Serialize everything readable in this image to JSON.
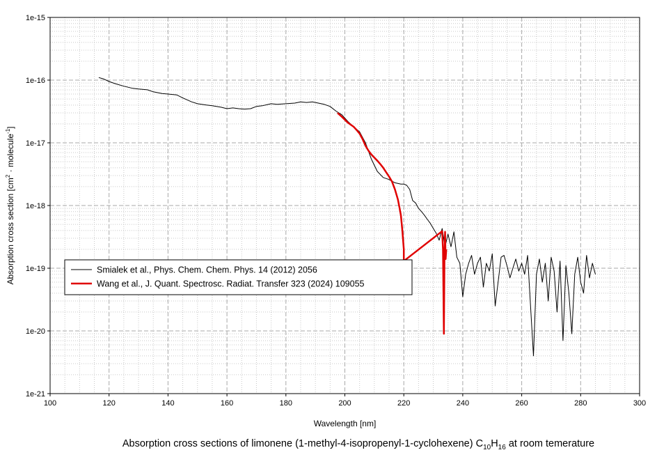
{
  "caption": {
    "prefix": "Absorption cross sections of limonene (1-methyl-4-isopropenyl-1-cyclohexene) C",
    "sub1": "10",
    "h": "H",
    "sub2": "16",
    "suffix": " at room temerature"
  },
  "chart_data": {
    "type": "line",
    "xlabel": "Wavelength [nm]",
    "ylabel_main": "Absorption cross section [cm",
    "ylabel_sup1": "2",
    "ylabel_mid": " · molecule",
    "ylabel_sup2": "-1",
    "ylabel_end": "]",
    "xlim": [
      100,
      300
    ],
    "ylim": [
      1e-21,
      1e-15
    ],
    "yscale": "log",
    "grid": true,
    "legend_position": "left-middle",
    "x_ticks": [
      100,
      120,
      140,
      160,
      180,
      200,
      220,
      240,
      260,
      280,
      300
    ],
    "x_tick_labels": [
      "100",
      "120",
      "140",
      "160",
      "180",
      "200",
      "220",
      "240",
      "260",
      "280",
      "300"
    ],
    "y_ticks": [
      1e-15,
      1e-16,
      1e-17,
      1e-18,
      1e-19,
      1e-20,
      1e-21
    ],
    "y_tick_labels": [
      "1e-15",
      "1e-16",
      "1e-17",
      "1e-18",
      "1e-19",
      "1e-20",
      "1e-21"
    ],
    "series": [
      {
        "name": "Smialek et al., Phys. Chem. Chem. Phys. 14 (2012) 2056",
        "color": "#000000",
        "x": [
          116.5,
          118,
          120,
          122,
          125,
          128,
          130,
          133,
          135,
          138,
          140,
          143,
          145,
          148,
          150,
          153,
          155,
          158,
          160,
          162,
          164,
          166,
          168,
          170,
          172,
          175,
          177,
          180,
          183,
          185,
          187,
          189,
          191,
          193,
          195,
          197,
          199,
          201,
          203,
          205,
          207,
          209,
          211,
          213,
          215,
          217,
          219,
          220,
          221,
          222,
          223,
          224,
          225,
          226,
          227,
          228,
          229,
          230,
          231,
          232,
          233,
          234,
          235,
          236,
          237,
          238,
          239,
          240,
          241,
          242,
          243,
          244,
          245,
          246,
          247,
          248,
          249,
          250,
          251,
          252,
          253,
          254,
          255,
          256,
          257,
          258,
          259,
          260,
          261,
          262,
          263,
          264,
          265,
          266,
          267,
          268,
          269,
          270,
          271,
          272,
          273,
          274,
          275,
          276,
          277,
          278,
          279,
          280,
          281,
          282,
          283,
          284,
          285
        ],
        "y": [
          1.1e-16,
          1.05e-16,
          9.5e-17,
          8.8e-17,
          8e-17,
          7.4e-17,
          7.2e-17,
          7e-17,
          6.5e-17,
          6.1e-17,
          6e-17,
          5.8e-17,
          5.2e-17,
          4.5e-17,
          4.2e-17,
          4e-17,
          3.9e-17,
          3.7e-17,
          3.5e-17,
          3.6e-17,
          3.5e-17,
          3.45e-17,
          3.5e-17,
          3.8e-17,
          3.9e-17,
          4.2e-17,
          4.1e-17,
          4.2e-17,
          4.3e-17,
          4.5e-17,
          4.4e-17,
          4.5e-17,
          4.3e-17,
          4.1e-17,
          3.8e-17,
          3.2e-17,
          2.8e-17,
          2.2e-17,
          1.8e-17,
          1.5e-17,
          1e-17,
          5.5e-18,
          3.5e-18,
          2.8e-18,
          2.6e-18,
          2.3e-18,
          2.2e-18,
          2.2e-18,
          2.1e-18,
          1.8e-18,
          1.2e-18,
          1.1e-18,
          9e-19,
          8e-19,
          7e-19,
          6e-19,
          5.2e-19,
          4.3e-19,
          3.6e-19,
          2.8e-19,
          4.3e-19,
          2.2e-19,
          3.5e-19,
          2.2e-19,
          3.8e-19,
          1.5e-19,
          1.2e-19,
          3.5e-20,
          8e-20,
          1.2e-19,
          1.6e-19,
          8e-20,
          1.2e-19,
          1.5e-19,
          5e-20,
          1.2e-19,
          9e-20,
          1.7e-19,
          2.5e-20,
          6e-20,
          1.5e-19,
          1.6e-19,
          1.1e-19,
          7e-20,
          1e-19,
          1.4e-19,
          9e-20,
          1.2e-19,
          8e-20,
          1.6e-19,
          2.5e-20,
          4e-21,
          8e-20,
          1.4e-19,
          6e-20,
          1.2e-19,
          3e-20,
          1.5e-19,
          9e-20,
          2e-20,
          1.3e-19,
          7e-21,
          1.1e-19,
          4e-20,
          9e-21,
          8e-20,
          1.5e-19,
          6e-20,
          4e-20,
          1.6e-19,
          7e-20,
          1.2e-19,
          8e-20
        ]
      },
      {
        "name": "Wang et al., J. Quant. Spectrosc. Radiat. Transfer 323 (2024) 109055",
        "color": "#e00000",
        "x": [
          197.5,
          199,
          201,
          203,
          204,
          205,
          206,
          207,
          208,
          209,
          210,
          211,
          212,
          213,
          214,
          215,
          216,
          217,
          218,
          218.5,
          219,
          219.5,
          220,
          220,
          233,
          233.3,
          233.6,
          233.8,
          234,
          234.2,
          234.4
        ],
        "y": [
          3e-17,
          2.6e-17,
          2.1e-17,
          1.8e-17,
          1.6e-17,
          1.4e-17,
          1.15e-17,
          9e-18,
          7.5e-18,
          6.5e-18,
          5.8e-18,
          5.2e-18,
          4.6e-18,
          4e-18,
          3.4e-18,
          2.9e-18,
          2.4e-18,
          1.8e-18,
          1.25e-18,
          9.5e-19,
          7e-19,
          4e-19,
          2e-19,
          1.3e-19,
          3.9e-19,
          2e-19,
          9e-21,
          1.5e-19,
          3.8e-19,
          1.4e-19,
          2e-19
        ]
      }
    ]
  }
}
